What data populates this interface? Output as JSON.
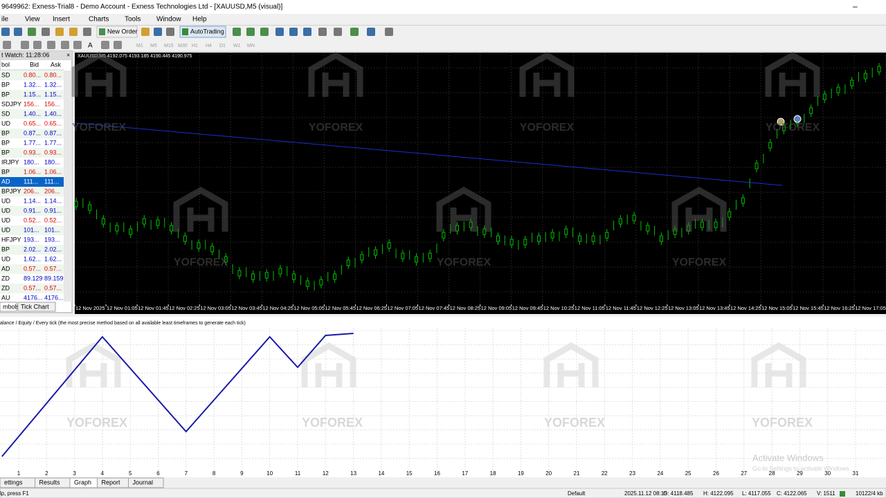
{
  "window": {
    "title": "9649962: Exness-Trial8 - Demo Account - Exness Technologies Ltd - [XAUUSD,M5 (visual)]",
    "menu": [
      "ile",
      "View",
      "Insert",
      "Charts",
      "Tools",
      "Window",
      "Help"
    ],
    "toolbar": {
      "new_order": "New Order",
      "auto_trading": "AutoTrading"
    },
    "timeframes": [
      "M1",
      "M5",
      "M15",
      "M30",
      "H1",
      "H4",
      "D1",
      "W1",
      "MN"
    ],
    "text_tool": "A"
  },
  "market_watch": {
    "title": "t Watch: 11:28:06",
    "columns": [
      "bol",
      "Bid",
      "Ask"
    ],
    "rows": [
      {
        "symbol": "SD",
        "bid": "0.80...",
        "ask": "0.80...",
        "color": "#e00000"
      },
      {
        "symbol": "BP",
        "bid": "1.32...",
        "ask": "1.32...",
        "color": "#0000cc"
      },
      {
        "symbol": "BP",
        "bid": "1.15...",
        "ask": "1.15...",
        "color": "#0000cc"
      },
      {
        "symbol": "SDJPY",
        "bid": "156...",
        "ask": "156...",
        "color": "#e00000"
      },
      {
        "symbol": "SD",
        "bid": "1.40...",
        "ask": "1.40...",
        "color": "#0000cc"
      },
      {
        "symbol": "UD",
        "bid": "0.65...",
        "ask": "0.65...",
        "color": "#e00000"
      },
      {
        "symbol": "BP",
        "bid": "0.87...",
        "ask": "0.87...",
        "color": "#0000cc"
      },
      {
        "symbol": "BP",
        "bid": "1.77...",
        "ask": "1.77...",
        "color": "#0000cc"
      },
      {
        "symbol": "BP",
        "bid": "0.93...",
        "ask": "0.93...",
        "color": "#e00000"
      },
      {
        "symbol": "IRJPY",
        "bid": "180...",
        "ask": "180...",
        "color": "#0000cc"
      },
      {
        "symbol": "BP",
        "bid": "1.06...",
        "ask": "1.06...",
        "color": "#e00000"
      },
      {
        "symbol": "AD",
        "bid": "111...",
        "ask": "111...",
        "color": "#ffffff",
        "selected": true
      },
      {
        "symbol": "BPJPY",
        "bid": "206...",
        "ask": "206...",
        "color": "#e00000"
      },
      {
        "symbol": "UD",
        "bid": "1.14...",
        "ask": "1.14...",
        "color": "#0000cc"
      },
      {
        "symbol": "UD",
        "bid": "0.91...",
        "ask": "0.91...",
        "color": "#0000cc"
      },
      {
        "symbol": "UD",
        "bid": "0.52...",
        "ask": "0.52...",
        "color": "#e00000"
      },
      {
        "symbol": "UD",
        "bid": "101...",
        "ask": "101...",
        "color": "#0000cc"
      },
      {
        "symbol": "HFJPY",
        "bid": "193...",
        "ask": "193...",
        "color": "#0000cc"
      },
      {
        "symbol": "BP",
        "bid": "2.02...",
        "ask": "2.02...",
        "color": "#0000cc"
      },
      {
        "symbol": "UD",
        "bid": "1.62...",
        "ask": "1.62...",
        "color": "#0000cc"
      },
      {
        "symbol": "AD",
        "bid": "0.57...",
        "ask": "0.57...",
        "color": "#e00000"
      },
      {
        "symbol": "ZD",
        "bid": "89.129",
        "ask": "89.159",
        "color": "#0000cc"
      },
      {
        "symbol": "ZD",
        "bid": "0.57...",
        "ask": "0.57...",
        "color": "#e00000"
      },
      {
        "symbol": "AU",
        "bid": "4176...",
        "ask": "4176...",
        "color": "#0000cc"
      }
    ],
    "tabs": [
      "mbols",
      "Tick Chart"
    ]
  },
  "price_chart": {
    "label": "XAUUSD,M5  4192.075 4193.185 4190.445 4190.975",
    "time_labels": [
      "12 Nov 2025",
      "12 Nov 01:05",
      "12 Nov 01:45",
      "12 Nov 02:25",
      "12 Nov 03:05",
      "12 Nov 03:45",
      "12 Nov 04:25",
      "12 Nov 05:05",
      "12 Nov 05:45",
      "12 Nov 06:25",
      "12 Nov 07:05",
      "12 Nov 07:45",
      "12 Nov 08:25",
      "12 Nov 09:05",
      "12 Nov 09:45",
      "12 Nov 10:25",
      "12 Nov 11:05",
      "12 Nov 11:45",
      "12 Nov 12:25",
      "12 Nov 13:05",
      "12 Nov 13:45",
      "12 Nov 14:25",
      "12 Nov 15:05",
      "12 Nov 15:45",
      "12 Nov 16:25",
      "12 Nov 17:05"
    ],
    "closes": [
      145,
      140,
      120,
      110,
      105,
      120,
      118,
      110,
      95,
      85,
      80,
      65,
      45,
      40,
      42,
      48,
      40,
      30,
      32,
      40,
      60,
      68,
      75,
      85,
      70,
      65,
      70,
      100,
      110,
      115,
      105,
      95,
      90,
      90,
      95,
      100,
      105,
      95,
      95,
      100,
      120,
      125,
      110,
      95,
      105,
      110,
      115,
      115,
      130,
      150,
      200,
      230,
      255,
      265,
      280,
      300,
      310,
      320,
      330,
      340
    ],
    "ma": [
      172,
      262
    ]
  },
  "tester": {
    "header": "alance / Equity / Every tick (the most precise method based on all available least timeframes to generate each tick)",
    "x_labels": [
      1,
      2,
      3,
      4,
      5,
      6,
      7,
      8,
      9,
      10,
      11,
      12,
      13,
      14,
      15,
      16,
      17,
      18,
      19,
      20,
      21,
      22,
      23,
      24,
      25,
      26,
      27,
      28,
      29,
      30,
      31
    ],
    "x": [
      0.4,
      4,
      7,
      10,
      11,
      12,
      13
    ],
    "values": [
      40,
      213,
      76,
      213,
      169,
      215,
      218
    ],
    "tabs": [
      "ettings",
      "Results",
      "Graph",
      "Report",
      "Journal"
    ],
    "active_tab": 2
  },
  "watermark": "YOFOREX",
  "activation": {
    "title": "Activate Windows",
    "text": "Go to Settings to activate Windows."
  },
  "status": [
    "lp, press F1",
    "Default",
    "2025.11.12 08:15",
    "O: 4118.485",
    "H: 4122.095",
    "L: 4117.055",
    "C: 4122.065",
    "V: 1511",
    "10122/4 kb"
  ]
}
